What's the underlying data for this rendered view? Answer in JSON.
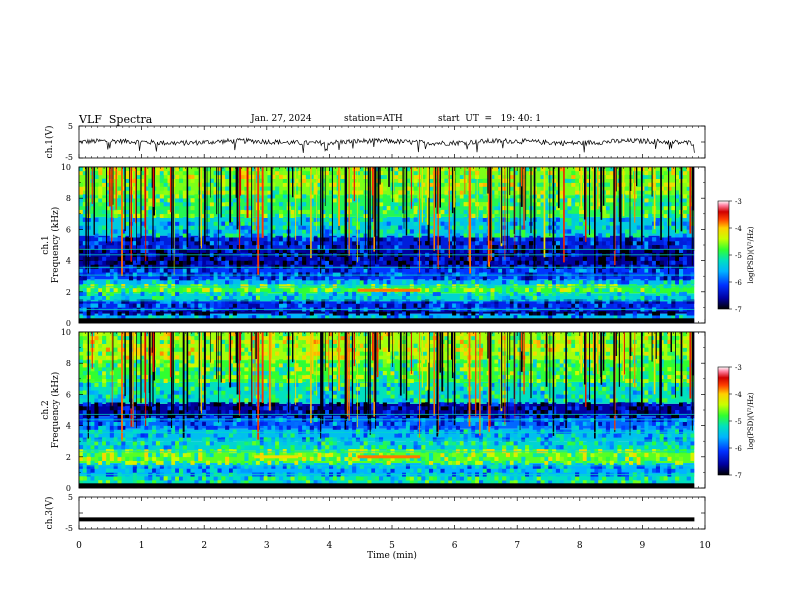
{
  "header": {
    "title": "VLF  Spectra",
    "date": "Jan. 27, 2024",
    "station": "station=ATH",
    "start": "start  UT  =   19: 40: 1"
  },
  "chart_data": [
    {
      "type": "line",
      "name": "ch1-waveform",
      "ylabel": "ch.1(V)",
      "ylim": [
        -5,
        5
      ],
      "yticks": [
        "5",
        "-5"
      ],
      "xlim": [
        0,
        10
      ],
      "data_extent_min": 9.83,
      "baseline": 0.0
    },
    {
      "type": "heatmap",
      "name": "ch1-spectrogram",
      "ylabel": "ch.1\nFrequency  (kHz)",
      "ylim": [
        0,
        10
      ],
      "yticks": [
        "0",
        "2",
        "4",
        "6",
        "8",
        "10"
      ],
      "xlim": [
        0,
        10
      ],
      "data_extent_min": 9.83,
      "colorbar": {
        "label": "log(PSD)(V²/Hz)",
        "range": [
          -7,
          -3
        ],
        "ticks": [
          "-3",
          "-4",
          "-5",
          "-6",
          "-7"
        ]
      },
      "bands": [
        {
          "f0": 0.0,
          "f1": 0.3,
          "level": -7.0
        },
        {
          "f0": 0.3,
          "f1": 0.6,
          "level": -5.6
        },
        {
          "f0": 0.6,
          "f1": 0.8,
          "level": -6.7
        },
        {
          "f0": 0.8,
          "f1": 1.4,
          "level": -6.2
        },
        {
          "f0": 1.4,
          "f1": 1.9,
          "level": -5.3
        },
        {
          "f0": 1.9,
          "f1": 2.4,
          "level": -4.8
        },
        {
          "f0": 2.4,
          "f1": 2.8,
          "level": -5.5
        },
        {
          "f0": 2.8,
          "f1": 3.6,
          "level": -6.1
        },
        {
          "f0": 3.6,
          "f1": 4.8,
          "level": -6.6
        },
        {
          "f0": 4.8,
          "f1": 5.6,
          "level": -6.3
        },
        {
          "f0": 5.6,
          "f1": 6.8,
          "level": -5.4
        },
        {
          "f0": 6.8,
          "f1": 8.2,
          "level": -4.9
        },
        {
          "f0": 8.2,
          "f1": 10.0,
          "level": -4.6
        }
      ],
      "features": [
        {
          "t0": 4.45,
          "t1": 5.45,
          "f": 2.1,
          "level": -3.8
        }
      ]
    },
    {
      "type": "heatmap",
      "name": "ch2-spectrogram",
      "ylabel": "ch.2\nFrequency  (kHz)",
      "ylim": [
        0,
        10
      ],
      "yticks": [
        "0",
        "2",
        "4",
        "6",
        "8",
        "10"
      ],
      "xlim": [
        0,
        10
      ],
      "data_extent_min": 9.83,
      "colorbar": {
        "label": "log(PSD)(V²/Hz)",
        "range": [
          -7,
          -3
        ],
        "ticks": [
          "-3",
          "-4",
          "-5",
          "-6",
          "-7"
        ]
      },
      "bands": [
        {
          "f0": 0.0,
          "f1": 0.2,
          "level": -7.0
        },
        {
          "f0": 0.2,
          "f1": 0.8,
          "level": -5.2
        },
        {
          "f0": 0.8,
          "f1": 1.6,
          "level": -5.6
        },
        {
          "f0": 1.6,
          "f1": 2.4,
          "level": -4.7
        },
        {
          "f0": 2.4,
          "f1": 3.0,
          "level": -5.3
        },
        {
          "f0": 3.0,
          "f1": 3.8,
          "level": -5.5
        },
        {
          "f0": 3.8,
          "f1": 4.6,
          "level": -5.9
        },
        {
          "f0": 4.6,
          "f1": 5.4,
          "level": -6.6
        },
        {
          "f0": 5.4,
          "f1": 6.8,
          "level": -5.2
        },
        {
          "f0": 6.8,
          "f1": 8.2,
          "level": -4.8
        },
        {
          "f0": 8.2,
          "f1": 10.0,
          "level": -4.5
        }
      ],
      "features": [
        {
          "t0": 4.45,
          "t1": 5.45,
          "f": 2.0,
          "level": -3.8
        },
        {
          "t0": 2.8,
          "t1": 3.5,
          "f": 2.0,
          "level": -4.1
        }
      ]
    },
    {
      "type": "line",
      "name": "ch3-waveform",
      "ylabel": "ch.3(V)",
      "ylim": [
        -5,
        5
      ],
      "yticks": [
        "5",
        "-5"
      ],
      "xlim": [
        0,
        10
      ],
      "data_extent_min": 9.83,
      "baseline": -2.0
    }
  ],
  "xaxis": {
    "label": "Time  (min)",
    "ticks": [
      "0",
      "1",
      "2",
      "3",
      "4",
      "5",
      "6",
      "7",
      "8",
      "9",
      "10"
    ]
  },
  "colors": {
    "colormap": [
      "#000000",
      "#0000a0",
      "#0030ff",
      "#00b4ff",
      "#00e0c0",
      "#30ff30",
      "#c8ff00",
      "#ffd000",
      "#ff4000",
      "#d00000",
      "#ff80a0",
      "#ffffff"
    ]
  }
}
